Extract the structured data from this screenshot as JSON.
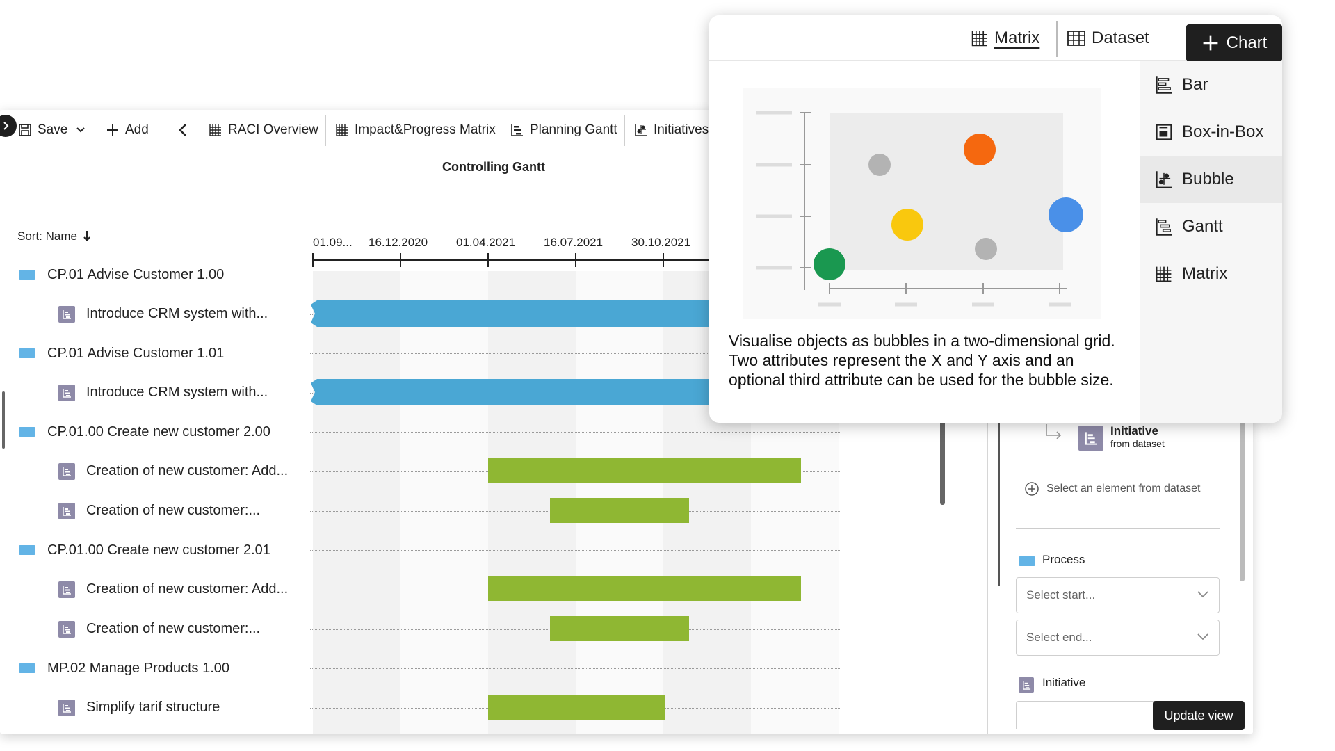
{
  "toolbar": {
    "save": "Save",
    "add": "Add",
    "tabs": [
      "RACI Overview",
      "Impact&Progress Matrix",
      "Planning Gantt",
      "Initiatives"
    ]
  },
  "gantt": {
    "title": "Controlling Gantt",
    "sort_label": "Sort: Name",
    "date_ticks": [
      "01.09...",
      "16.12.2020",
      "01.04.2021",
      "16.07.2021",
      "30.10.2021"
    ],
    "rows": [
      {
        "label": "CP.01 Advise Customer 1.00",
        "type": "process"
      },
      {
        "label": "Introduce CRM system with...",
        "type": "initiative"
      },
      {
        "label": "CP.01 Advise Customer 1.01",
        "type": "process"
      },
      {
        "label": "Introduce CRM system with...",
        "type": "initiative"
      },
      {
        "label": "CP.01.00 Create new customer 2.00",
        "type": "process"
      },
      {
        "label": "Creation of new customer: Add...",
        "type": "initiative"
      },
      {
        "label": "Creation of new customer:...",
        "type": "initiative"
      },
      {
        "label": "CP.01.00 Create new customer 2.01",
        "type": "process"
      },
      {
        "label": "Creation of new customer: Add...",
        "type": "initiative"
      },
      {
        "label": "Creation of new customer:...",
        "type": "initiative"
      },
      {
        "label": "MP.02 Manage Products 1.00",
        "type": "process"
      },
      {
        "label": "Simplify tarif structure",
        "type": "initiative"
      }
    ],
    "colors": {
      "blue_bar": "#4aa7d4",
      "green_bar": "#8fb733",
      "process_icon": "#63b4e6",
      "initiative_icon": "#8e8aa8"
    }
  },
  "config_panel": {
    "initiative_title": "Initiative",
    "initiative_sub": "from dataset",
    "select_element": "Select an element from dataset",
    "process_label": "Process",
    "select_start": "Select start...",
    "select_end": "Select end...",
    "initiative_label": "Initiative",
    "update_button": "Update view"
  },
  "popup": {
    "tabs": {
      "matrix": "Matrix",
      "dataset": "Dataset",
      "chart": "Chart"
    },
    "menu": [
      "Bar",
      "Box-in-Box",
      "Bubble",
      "Gantt",
      "Matrix"
    ],
    "selected": "Bubble",
    "description": "Visualise objects as bubbles in a two-dimensional grid. Two attributes represent the X and Y axis and an optional third attribute can be used for the bubble size.",
    "bubble_colors": [
      "#b3b3b3",
      "#f5680f",
      "#f9c80e",
      "#4a90e8",
      "#1a9850"
    ]
  }
}
